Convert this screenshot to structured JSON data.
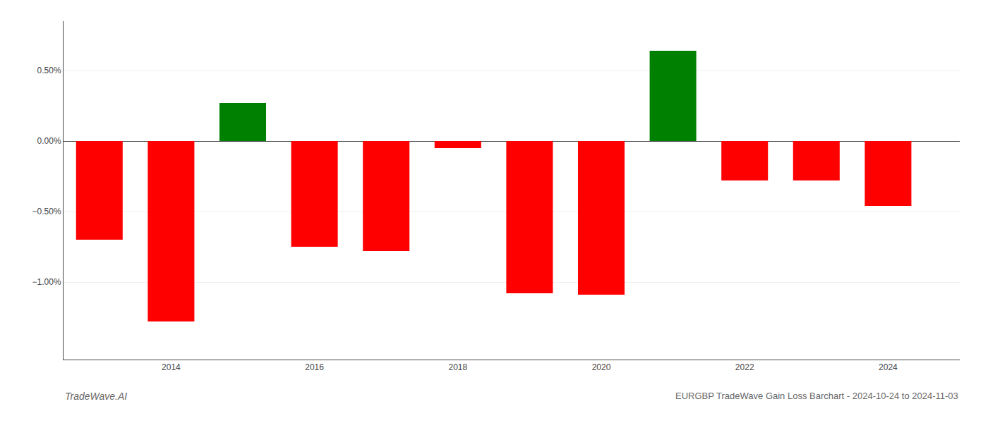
{
  "chart_data": {
    "type": "bar",
    "title": "EURGBP TradeWave Gain Loss Barchart - 2024-10-24 to 2024-11-03",
    "annotations": [
      "TradeWave.AI"
    ],
    "x": [
      2013,
      2014,
      2015,
      2016,
      2017,
      2018,
      2019,
      2020,
      2021,
      2022,
      2023,
      2024
    ],
    "values": [
      -0.007,
      -0.0128,
      0.0027,
      -0.0075,
      -0.0078,
      -0.0005,
      -0.0108,
      -0.0109,
      0.0064,
      -0.0028,
      -0.0028,
      -0.0046
    ],
    "colors": [
      "#ff0000",
      "#ff0000",
      "#008000",
      "#ff0000",
      "#ff0000",
      "#ff0000",
      "#ff0000",
      "#ff0000",
      "#008000",
      "#ff0000",
      "#ff0000",
      "#ff0000"
    ],
    "xlim": [
      2012.5,
      2025.0
    ],
    "xticks": [
      2014,
      2016,
      2018,
      2020,
      2022,
      2024
    ],
    "ylim": [
      -0.0155,
      0.0085
    ],
    "yticks": [
      {
        "value": -0.01,
        "label": "−1.00%"
      },
      {
        "value": -0.005,
        "label": "−0.50%"
      },
      {
        "value": 0.0,
        "label": "0.00%"
      },
      {
        "value": 0.005,
        "label": "0.50%"
      }
    ],
    "grid": true
  }
}
